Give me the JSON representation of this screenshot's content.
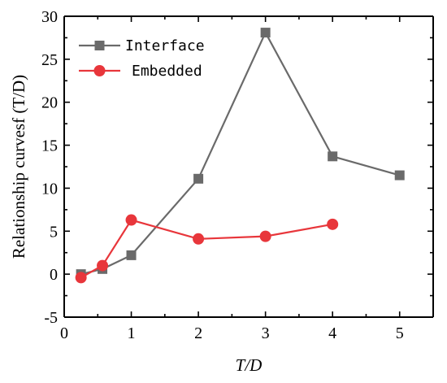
{
  "chart_data": {
    "type": "line",
    "xlabel": "T/D",
    "ylabel": "Relationship curvesf (T/D)",
    "xlim": [
      0,
      5.5
    ],
    "ylim": [
      -5,
      30
    ],
    "x_ticks": [
      0,
      1,
      2,
      3,
      4,
      5
    ],
    "y_ticks": [
      -5,
      0,
      5,
      10,
      15,
      20,
      25,
      30
    ],
    "grid": false,
    "legend_position": "top-left",
    "series": [
      {
        "name": "Interface",
        "color": "#6a6a6a",
        "marker": "square",
        "x": [
          0.25,
          0.57,
          1,
          2,
          3,
          4,
          5
        ],
        "y": [
          0.0,
          0.6,
          2.2,
          11.1,
          28.1,
          13.7,
          11.5
        ]
      },
      {
        "name": "Embedded",
        "color": "#e8363b",
        "marker": "circle",
        "x": [
          0.25,
          0.57,
          1,
          2,
          3,
          4
        ],
        "y": [
          -0.4,
          1.0,
          6.3,
          4.1,
          4.4,
          5.8
        ]
      }
    ]
  }
}
